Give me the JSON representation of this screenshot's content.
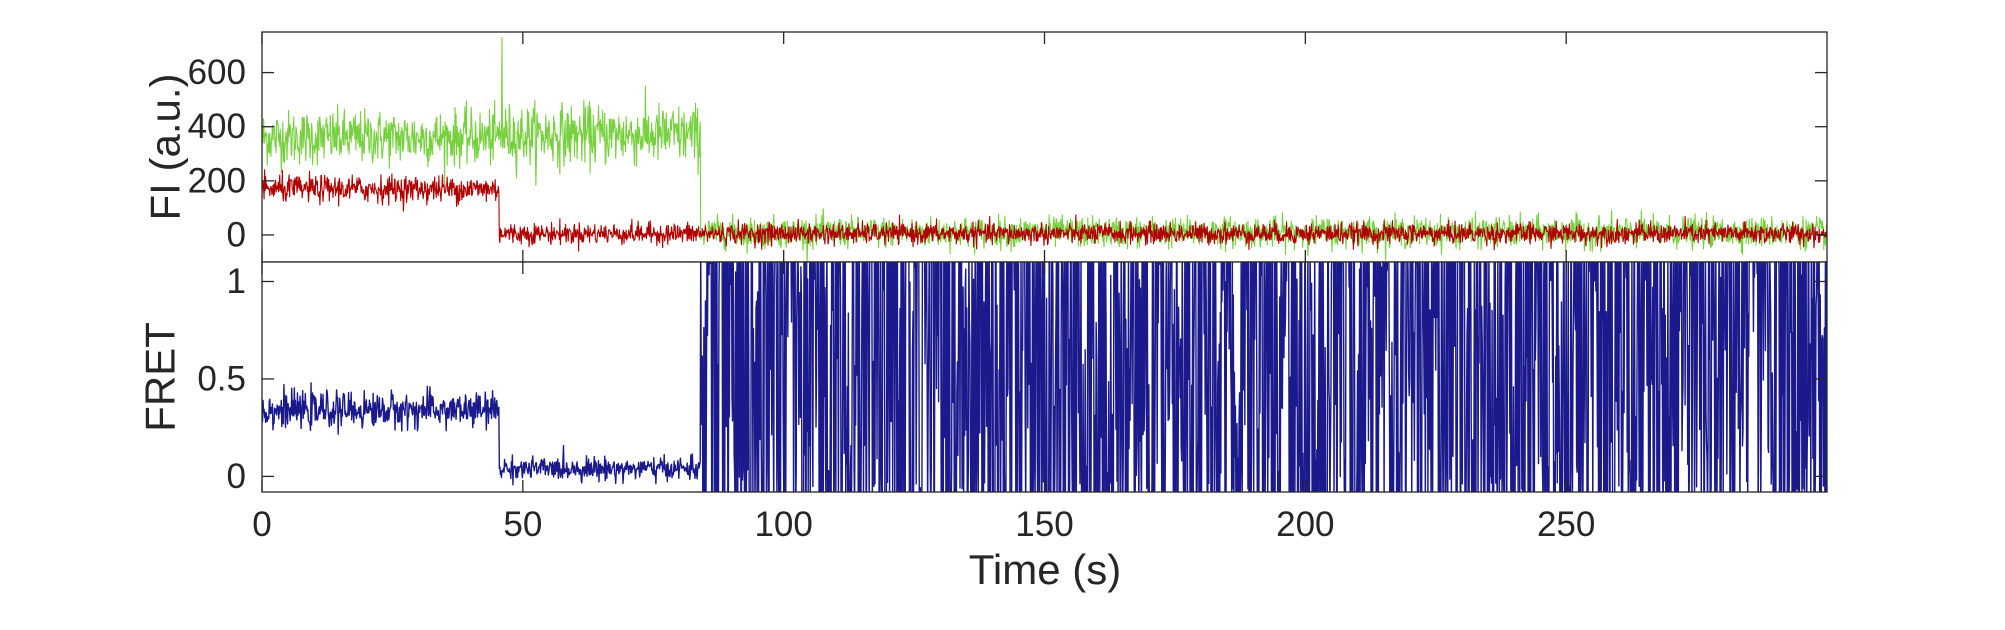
{
  "chart_data": [
    {
      "type": "line",
      "panel": "fluorescence",
      "title": "",
      "xlabel": "",
      "ylabel": "FI (a.u.)",
      "xlim": [
        0,
        300
      ],
      "ylim": [
        -100,
        750
      ],
      "xticks": [
        0,
        50,
        100,
        150,
        200,
        250
      ],
      "yticks": [
        0,
        200,
        400,
        600
      ],
      "ytick_labels": [
        "0",
        "200",
        "400",
        "600"
      ],
      "box": true,
      "grid": false,
      "series": [
        {
          "color": "#77d13f",
          "segments": [
            {
              "x_start": 0,
              "x_end": 45.5,
              "mean": 360,
              "noise": 90
            },
            {
              "x_start": 45.5,
              "x_end": 84,
              "mean": 370,
              "noise": 100
            },
            {
              "x_start": 84,
              "x_end": 300,
              "mean": 10,
              "noise": 50
            }
          ],
          "max_points": [
            {
              "x": 46,
              "y": 730
            }
          ]
        },
        {
          "color": "#b10000",
          "segments": [
            {
              "x_start": 0,
              "x_end": 45.5,
              "mean": 170,
              "noise": 45
            },
            {
              "x_start": 45.5,
              "x_end": 300,
              "mean": 5,
              "noise": 35
            }
          ]
        }
      ]
    },
    {
      "type": "line",
      "panel": "fret",
      "title": "",
      "xlabel": "Time (s)",
      "ylabel": "FRET",
      "xlim": [
        0,
        300
      ],
      "ylim": [
        -0.08,
        1.1
      ],
      "xticks": [
        0,
        50,
        100,
        150,
        200,
        250
      ],
      "xtick_labels": [
        "0",
        "50",
        "100",
        "150",
        "200",
        "250"
      ],
      "yticks": [
        0,
        0.5,
        1
      ],
      "ytick_labels": [
        "0",
        "0.5",
        "1"
      ],
      "box": true,
      "grid": false,
      "series": [
        {
          "color": "#1a1a8c",
          "segments": [
            {
              "x_start": 0,
              "x_end": 45.5,
              "mean": 0.34,
              "noise": 0.08
            },
            {
              "x_start": 45.5,
              "x_end": 84,
              "mean": 0.04,
              "noise": 0.05
            },
            {
              "x_start": 84,
              "x_end": 300,
              "behavior": "fluctuates between -0.08 and 1.1"
            }
          ]
        }
      ]
    }
  ]
}
